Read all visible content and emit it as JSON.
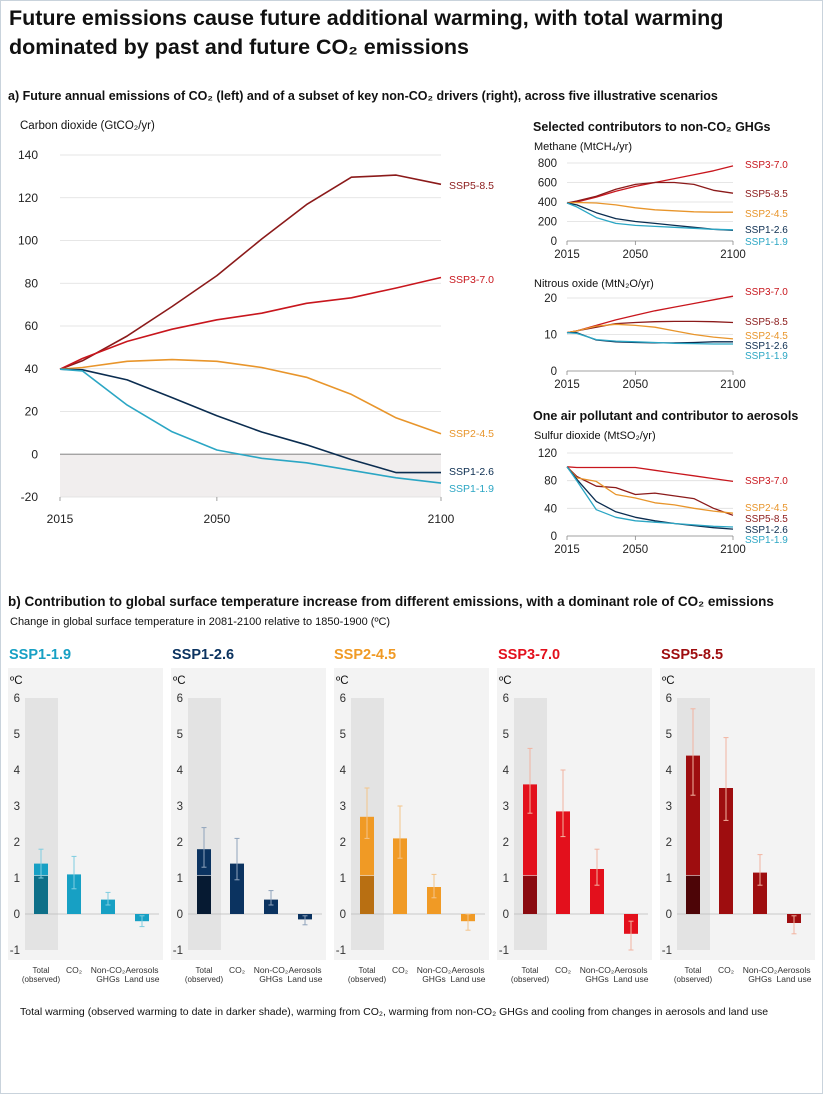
{
  "title": "Future emissions cause future additional warming, with total warming dominated by past and future CO₂ emissions",
  "panel_a": {
    "heading": "a) Future annual emissions of CO₂ (left) and of a subset of key non-CO₂ drivers (right), across five illustrative scenarios",
    "subheading_nonco2": "Selected contributors to non-CO₂ GHGs",
    "subheading_aerosol": "One air pollutant and contributor to aerosols"
  },
  "panel_b": {
    "heading": "b) Contribution to global surface temperature increase from different emissions, with a dominant role of CO₂ emissions",
    "subtitle": "Change in global surface temperature in 2081-2100 relative to 1850-1900 (ºC)",
    "unit": "ºC",
    "footnote": "Total warming (observed warming to date in darker shade), warming from CO₂, warming from non-CO₂ GHGs and cooling from changes in aerosols and land use"
  },
  "chart_data": [
    {
      "id": "co2",
      "type": "line",
      "title": "Carbon dioxide (GtCO₂/yr)",
      "xlim": [
        2015,
        2100
      ],
      "ylim": [
        -20,
        140
      ],
      "yticks": [
        -20,
        0,
        20,
        40,
        60,
        80,
        100,
        120,
        140
      ],
      "xticks": [
        2015,
        2050,
        2100
      ],
      "series": [
        {
          "name": "SSP5-8.5",
          "color": "#8b1a1a",
          "x": [
            2015,
            2020,
            2030,
            2040,
            2050,
            2060,
            2070,
            2080,
            2090,
            2100
          ],
          "values": [
            39.8,
            43.7,
            55.3,
            69.1,
            83.6,
            100.7,
            116.8,
            129.6,
            130.6,
            126.3
          ]
        },
        {
          "name": "SSP3-7.0",
          "color": "#c8161d",
          "x": [
            2015,
            2020,
            2030,
            2040,
            2050,
            2060,
            2070,
            2080,
            2090,
            2100
          ],
          "values": [
            39.8,
            44.8,
            52.8,
            58.5,
            62.9,
            66.0,
            70.6,
            73.2,
            77.8,
            82.7
          ]
        },
        {
          "name": "SSP2-4.5",
          "color": "#e8952b",
          "x": [
            2015,
            2020,
            2030,
            2040,
            2050,
            2060,
            2070,
            2080,
            2090,
            2100
          ],
          "values": [
            39.8,
            40.6,
            43.5,
            44.3,
            43.5,
            40.6,
            36.0,
            28.0,
            17.0,
            9.6
          ]
        },
        {
          "name": "SSP1-2.6",
          "color": "#0b2d50",
          "x": [
            2015,
            2020,
            2030,
            2040,
            2050,
            2060,
            2070,
            2080,
            2090,
            2100
          ],
          "values": [
            39.8,
            39.5,
            34.8,
            26.5,
            18.0,
            10.4,
            4.4,
            -2.5,
            -8.6,
            -8.6
          ]
        },
        {
          "name": "SSP1-1.9",
          "color": "#2ba6c4",
          "x": [
            2015,
            2020,
            2030,
            2040,
            2050,
            2060,
            2070,
            2080,
            2090,
            2100
          ],
          "values": [
            39.8,
            39.0,
            23.0,
            10.5,
            2.0,
            -1.9,
            -4.0,
            -7.5,
            -11.0,
            -13.5
          ]
        }
      ]
    },
    {
      "id": "methane",
      "type": "line",
      "title": "Methane (MtCH₄/yr)",
      "xlim": [
        2015,
        2100
      ],
      "ylim": [
        0,
        800
      ],
      "yticks": [
        0,
        200,
        400,
        600,
        800
      ],
      "xticks": [
        2015,
        2050,
        2100
      ],
      "series": [
        {
          "name": "SSP3-7.0",
          "color": "#c8161d",
          "x": [
            2015,
            2020,
            2030,
            2040,
            2050,
            2060,
            2070,
            2080,
            2090,
            2100
          ],
          "values": [
            390,
            400,
            450,
            510,
            560,
            600,
            640,
            680,
            720,
            770
          ]
        },
        {
          "name": "SSP5-8.5",
          "color": "#8b1a1a",
          "x": [
            2015,
            2020,
            2030,
            2040,
            2050,
            2060,
            2070,
            2080,
            2090,
            2100
          ],
          "values": [
            390,
            410,
            460,
            530,
            580,
            600,
            600,
            580,
            520,
            490
          ]
        },
        {
          "name": "SSP2-4.5",
          "color": "#e8952b",
          "x": [
            2015,
            2020,
            2030,
            2040,
            2050,
            2060,
            2070,
            2080,
            2090,
            2100
          ],
          "values": [
            390,
            395,
            390,
            370,
            340,
            320,
            310,
            300,
            295,
            295
          ]
        },
        {
          "name": "SSP1-2.6",
          "color": "#0b2d50",
          "x": [
            2015,
            2020,
            2030,
            2040,
            2050,
            2060,
            2070,
            2080,
            2090,
            2100
          ],
          "values": [
            390,
            370,
            290,
            230,
            200,
            180,
            160,
            140,
            120,
            110
          ]
        },
        {
          "name": "SSP1-1.9",
          "color": "#2ba6c4",
          "x": [
            2015,
            2020,
            2030,
            2040,
            2050,
            2060,
            2070,
            2080,
            2090,
            2100
          ],
          "values": [
            390,
            350,
            240,
            180,
            160,
            150,
            140,
            130,
            120,
            115
          ]
        }
      ]
    },
    {
      "id": "n2o",
      "type": "line",
      "title": "Nitrous oxide (MtN₂O/yr)",
      "xlim": [
        2015,
        2100
      ],
      "ylim": [
        0,
        20
      ],
      "yticks": [
        0,
        10,
        20
      ],
      "xticks": [
        2015,
        2050,
        2100
      ],
      "series": [
        {
          "name": "SSP3-7.0",
          "color": "#c8161d",
          "x": [
            2015,
            2020,
            2030,
            2040,
            2050,
            2060,
            2070,
            2080,
            2090,
            2100
          ],
          "values": [
            10.5,
            11.0,
            12.5,
            14.0,
            15.3,
            16.5,
            17.5,
            18.5,
            19.5,
            20.5
          ]
        },
        {
          "name": "SSP5-8.5",
          "color": "#8b1a1a",
          "x": [
            2015,
            2020,
            2030,
            2040,
            2050,
            2060,
            2070,
            2080,
            2090,
            2100
          ],
          "values": [
            10.5,
            11.0,
            12.0,
            13.0,
            13.3,
            13.5,
            13.6,
            13.6,
            13.5,
            13.3
          ]
        },
        {
          "name": "SSP2-4.5",
          "color": "#e8952b",
          "x": [
            2015,
            2020,
            2030,
            2040,
            2050,
            2060,
            2070,
            2080,
            2090,
            2100
          ],
          "values": [
            10.5,
            11.0,
            12.3,
            12.8,
            12.5,
            12.0,
            11.0,
            10.0,
            9.3,
            8.8
          ]
        },
        {
          "name": "SSP1-2.6",
          "color": "#0b2d50",
          "x": [
            2015,
            2020,
            2030,
            2040,
            2050,
            2060,
            2070,
            2080,
            2090,
            2100
          ],
          "values": [
            10.5,
            10.5,
            8.5,
            8.0,
            7.8,
            7.7,
            7.7,
            7.8,
            8.0,
            8.0
          ]
        },
        {
          "name": "SSP1-1.9",
          "color": "#2ba6c4",
          "x": [
            2015,
            2020,
            2030,
            2040,
            2050,
            2060,
            2070,
            2080,
            2090,
            2100
          ],
          "values": [
            10.5,
            10.3,
            8.6,
            8.2,
            8.0,
            7.8,
            7.6,
            7.5,
            7.4,
            7.4
          ]
        }
      ]
    },
    {
      "id": "so2",
      "type": "line",
      "title": "Sulfur dioxide (MtSO₂/yr)",
      "xlim": [
        2015,
        2100
      ],
      "ylim": [
        0,
        120
      ],
      "yticks": [
        0,
        40,
        80,
        120
      ],
      "xticks": [
        2015,
        2050,
        2100
      ],
      "series": [
        {
          "name": "SSP3-7.0",
          "color": "#c8161d",
          "x": [
            2015,
            2020,
            2030,
            2040,
            2050,
            2060,
            2070,
            2080,
            2090,
            2100
          ],
          "values": [
            100,
            99,
            99,
            99,
            99,
            95,
            91,
            87,
            83,
            79
          ]
        },
        {
          "name": "SSP5-8.5",
          "color": "#8b1a1a",
          "x": [
            2015,
            2020,
            2030,
            2040,
            2050,
            2060,
            2070,
            2080,
            2090,
            2100
          ],
          "values": [
            100,
            86,
            72,
            70,
            60,
            62,
            58,
            54,
            40,
            30
          ]
        },
        {
          "name": "SSP2-4.5",
          "color": "#e8952b",
          "x": [
            2015,
            2020,
            2030,
            2040,
            2050,
            2060,
            2070,
            2080,
            2090,
            2100
          ],
          "values": [
            100,
            84,
            79,
            60,
            55,
            48,
            45,
            40,
            36,
            33
          ]
        },
        {
          "name": "SSP1-2.6",
          "color": "#0b2d50",
          "x": [
            2015,
            2020,
            2030,
            2040,
            2050,
            2060,
            2070,
            2080,
            2090,
            2100
          ],
          "values": [
            100,
            82,
            50,
            35,
            27,
            22,
            18,
            15,
            12,
            10
          ]
        },
        {
          "name": "SSP1-1.9",
          "color": "#2ba6c4",
          "x": [
            2015,
            2020,
            2030,
            2040,
            2050,
            2060,
            2070,
            2080,
            2090,
            2100
          ],
          "values": [
            100,
            80,
            38,
            27,
            22,
            20,
            18,
            16,
            14,
            13
          ]
        }
      ]
    },
    {
      "id": "warming",
      "type": "bar",
      "unit": "ºC",
      "ylim": [
        -1,
        6
      ],
      "yticks": [
        -1,
        0,
        1,
        2,
        3,
        4,
        5,
        6
      ],
      "categories": [
        "Total (observed)",
        "CO₂",
        "Non-CO₂ GHGs",
        "Aerosols land use"
      ],
      "category_labels": [
        [
          "Total",
          "(observed)"
        ],
        [
          "CO₂"
        ],
        [
          "Non-CO₂",
          "GHGs"
        ],
        [
          "Aerosols",
          "Land use"
        ]
      ],
      "observed_total": 1.07,
      "series": [
        {
          "name": "SSP1-1.9",
          "color": "#17a0c4",
          "dark": "#0d6f88",
          "values": [
            1.4,
            1.1,
            0.4,
            -0.2
          ],
          "low": [
            1.0,
            0.7,
            0.25,
            -0.35
          ],
          "high": [
            1.8,
            1.6,
            0.6,
            -0.05
          ]
        },
        {
          "name": "SSP1-2.6",
          "color": "#0b3360",
          "dark": "#061a32",
          "values": [
            1.8,
            1.4,
            0.4,
            -0.15
          ],
          "low": [
            1.3,
            0.95,
            0.25,
            -0.3
          ],
          "high": [
            2.4,
            2.1,
            0.65,
            -0.05
          ]
        },
        {
          "name": "SSP2-4.5",
          "color": "#f09a25",
          "dark": "#b86f12",
          "values": [
            2.7,
            2.1,
            0.75,
            -0.2
          ],
          "low": [
            2.1,
            1.55,
            0.45,
            -0.45
          ],
          "high": [
            3.5,
            3.0,
            1.1,
            0.0
          ]
        },
        {
          "name": "SSP3-7.0",
          "color": "#e3101c",
          "dark": "#8a0a10",
          "values": [
            3.6,
            2.85,
            1.25,
            -0.55
          ],
          "low": [
            2.8,
            2.15,
            0.8,
            -1.0
          ],
          "high": [
            4.6,
            4.0,
            1.8,
            -0.2
          ]
        },
        {
          "name": "SSP5-8.5",
          "color": "#9e0d0f",
          "dark": "#4d0507",
          "values": [
            4.4,
            3.5,
            1.15,
            -0.25
          ],
          "low": [
            3.3,
            2.6,
            0.8,
            -0.55
          ],
          "high": [
            5.7,
            4.9,
            1.65,
            -0.05
          ]
        }
      ]
    }
  ]
}
